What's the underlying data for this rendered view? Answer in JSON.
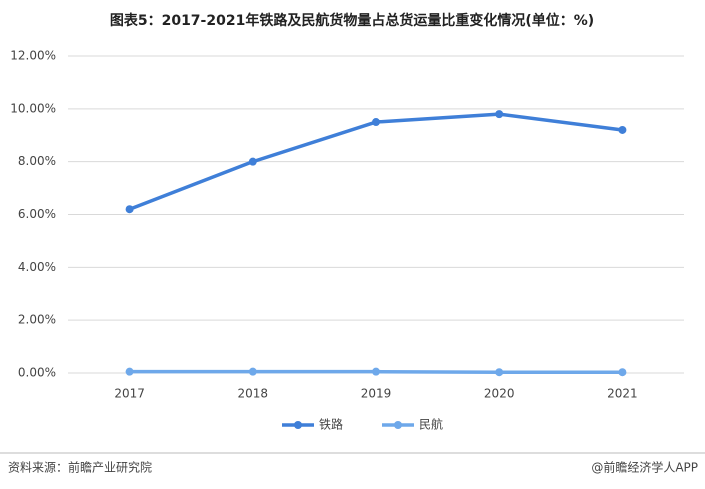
{
  "chart_data": {
    "type": "line",
    "title": "图表5：2017-2021年铁路及民航货物量占总货运量比重变化情况(单位：%)",
    "categories": [
      "2017",
      "2018",
      "2019",
      "2020",
      "2021"
    ],
    "series": [
      {
        "name": "铁路",
        "color": "#3f7fd8",
        "values": [
          6.2,
          8.0,
          9.5,
          9.8,
          9.2
        ]
      },
      {
        "name": "民航",
        "color": "#6ea8ea",
        "values": [
          0.05,
          0.05,
          0.05,
          0.03,
          0.03
        ]
      }
    ],
    "ylim": [
      0,
      12
    ],
    "yticks": [
      {
        "value": 0,
        "label": "0.00%"
      },
      {
        "value": 2,
        "label": "2.00%"
      },
      {
        "value": 4,
        "label": "4.00%"
      },
      {
        "value": 6,
        "label": "6.00%"
      },
      {
        "value": 8,
        "label": "8.00%"
      },
      {
        "value": 10,
        "label": "10.00%"
      },
      {
        "value": 12,
        "label": "12.00%"
      }
    ],
    "grid": true,
    "legend": "bottom",
    "source": "资料来源：前瞻产业研究院",
    "credit": "@前瞻经济学人APP"
  }
}
